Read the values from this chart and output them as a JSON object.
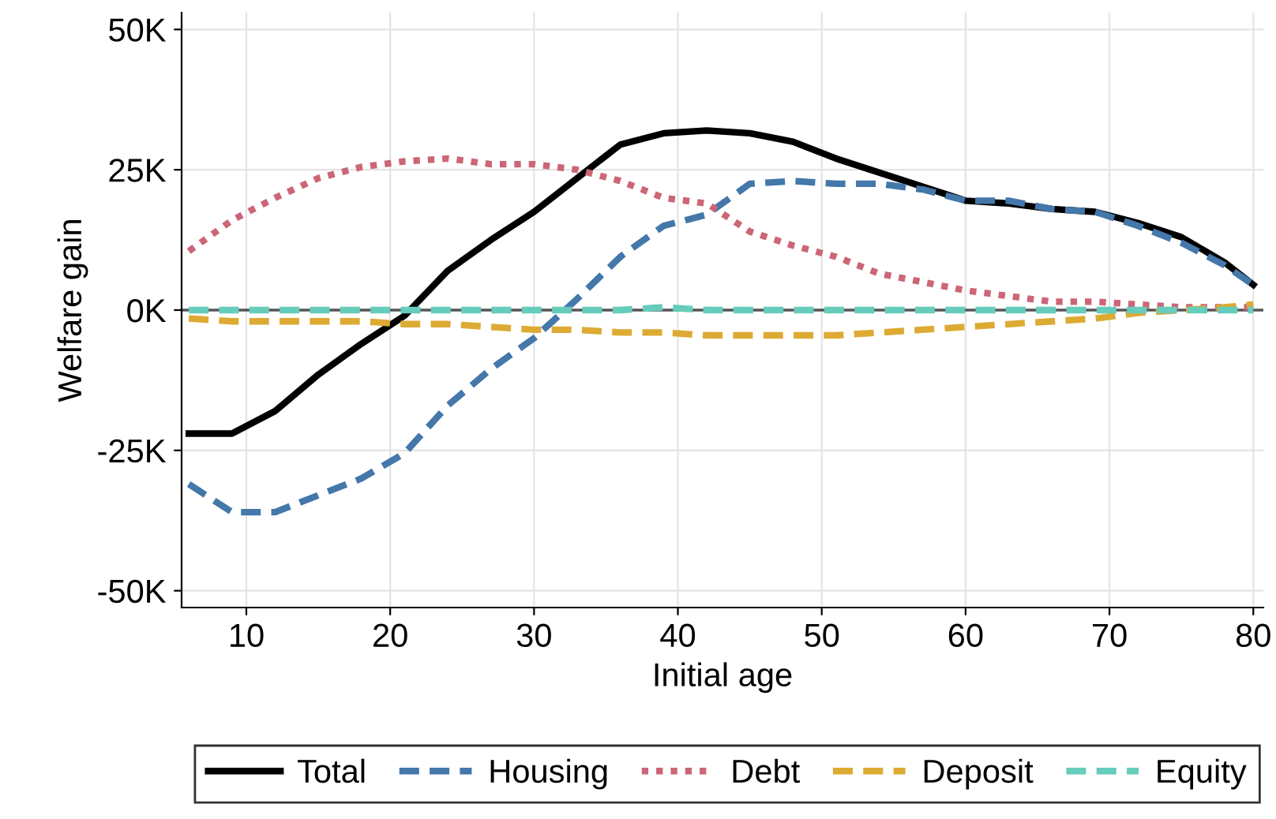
{
  "chart_data": {
    "type": "line",
    "xlabel": "Initial age",
    "ylabel": "Welfare gain",
    "x": [
      6,
      9,
      12,
      15,
      18,
      21,
      24,
      27,
      30,
      33,
      36,
      39,
      42,
      45,
      48,
      51,
      54,
      57,
      60,
      63,
      66,
      69,
      72,
      75,
      78,
      80
    ],
    "series": [
      {
        "name": "Total",
        "color": "#000000",
        "line_style": "solid",
        "values": [
          -22,
          -22,
          -18,
          -11.5,
          -6,
          -1,
          7,
          12.5,
          17.5,
          23.5,
          29.5,
          31.5,
          32,
          31.5,
          30,
          27,
          24.5,
          22,
          19.5,
          19,
          18,
          17.5,
          15.5,
          13,
          8.5,
          4.5
        ]
      },
      {
        "name": "Housing",
        "color": "#4477aa",
        "line_style": "dashed",
        "values": [
          -31,
          -36,
          -36,
          -33,
          -30,
          -25.5,
          -17,
          -10.5,
          -5,
          2,
          9.5,
          15,
          17,
          22.5,
          23,
          22.5,
          22.5,
          21.5,
          19.5,
          19.5,
          18,
          17.5,
          15,
          12,
          8,
          4.5
        ]
      },
      {
        "name": "Debt",
        "color": "#cc6677",
        "line_style": "dotted",
        "values": [
          10.5,
          16,
          20,
          23.5,
          25.5,
          26.5,
          27,
          26,
          26,
          25,
          23,
          20,
          19,
          14,
          11.5,
          9.5,
          6.5,
          5,
          3.5,
          2.5,
          1.5,
          1.5,
          1,
          0.5,
          0.5,
          0.5
        ]
      },
      {
        "name": "Deposit",
        "color": "#ddaa33",
        "line_style": "dashed",
        "values": [
          -1.5,
          -2,
          -2,
          -2,
          -2,
          -2.5,
          -2.5,
          -3,
          -3.5,
          -3.5,
          -4,
          -4,
          -4.5,
          -4.5,
          -4.5,
          -4.5,
          -4,
          -3.5,
          -3,
          -2.5,
          -2,
          -1.5,
          -0.5,
          0,
          0.5,
          1
        ]
      },
      {
        "name": "Equity",
        "color": "#66ccbb",
        "line_style": "dashed",
        "values": [
          0,
          0,
          0,
          0,
          0,
          0,
          0,
          0,
          0,
          0,
          0,
          0.5,
          0,
          0,
          0,
          0,
          0,
          0,
          0,
          0,
          0,
          0,
          0,
          0,
          0,
          0
        ]
      }
    ],
    "xlim": [
      5.5,
      80.7
    ],
    "xticks": [
      10,
      20,
      30,
      40,
      50,
      60,
      70,
      80
    ],
    "ylim": [
      -53,
      53
    ],
    "yticks": [
      {
        "value": -50,
        "label": "-50K"
      },
      {
        "value": -25,
        "label": "-25K"
      },
      {
        "value": 0,
        "label": "0K"
      },
      {
        "value": 25,
        "label": "25K"
      },
      {
        "value": 50,
        "label": "50K"
      }
    ],
    "ref_lines": [
      {
        "axis": "y",
        "value": 0,
        "color": "#555555"
      }
    ],
    "grid": true,
    "legend": "bottom"
  }
}
